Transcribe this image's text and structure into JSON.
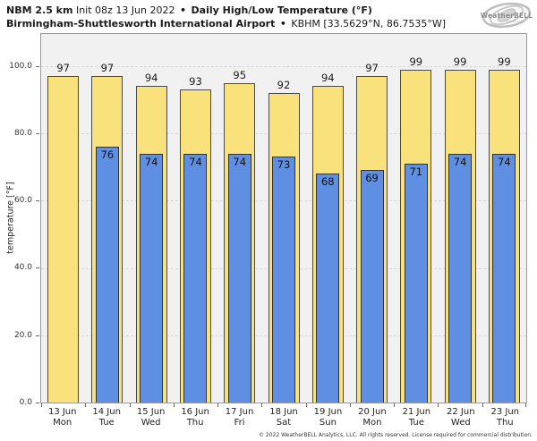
{
  "header": {
    "line1": {
      "model": "NBM 2.5 km",
      "init": "Init 08z 13 Jun 2022",
      "sep": "•",
      "product": "Daily High/Low Temperature (°F)"
    },
    "line2": {
      "station": "Birmingham-Shuttlesworth International Airport",
      "sep": "•",
      "location": "KBHM [33.5629°N, 86.7535°W]"
    }
  },
  "logo": {
    "brand": "WeatherBELL",
    "sub": "Analytics LLC"
  },
  "chart_data": {
    "type": "bar",
    "title": "Daily High/Low Temperature (°F)",
    "xlabel": "",
    "ylabel": "temperature [°F]",
    "ylim": [
      0,
      109.5
    ],
    "yticks": [
      0,
      20,
      40,
      60,
      80,
      100
    ],
    "ytick_labels": [
      "0.0",
      "20.0",
      "40.0",
      "60.0",
      "80.0",
      "100.0"
    ],
    "grid": "horizontal-dashed",
    "legend": "none",
    "categories": [
      {
        "date": "13 Jun",
        "day": "Mon"
      },
      {
        "date": "14 Jun",
        "day": "Tue"
      },
      {
        "date": "15 Jun",
        "day": "Wed"
      },
      {
        "date": "16 Jun",
        "day": "Thu"
      },
      {
        "date": "17 Jun",
        "day": "Fri"
      },
      {
        "date": "18 Jun",
        "day": "Sat"
      },
      {
        "date": "19 Jun",
        "day": "Sun"
      },
      {
        "date": "20 Jun",
        "day": "Mon"
      },
      {
        "date": "21 Jun",
        "day": "Tue"
      },
      {
        "date": "22 Jun",
        "day": "Wed"
      },
      {
        "date": "23 Jun",
        "day": "Thu"
      }
    ],
    "series": [
      {
        "name": "daily-high",
        "color": "#f9e17c",
        "values": [
          97,
          97,
          94,
          93,
          95,
          92,
          94,
          97,
          99,
          99,
          99
        ]
      },
      {
        "name": "daily-low",
        "color": "#5f8fe2",
        "values": [
          null,
          76,
          74,
          74,
          74,
          73,
          68,
          69,
          71,
          74,
          74
        ]
      }
    ]
  },
  "footer": {
    "copyright": "© 2022 WeatherBELL Analytics, LLC. All rights reserved. License required for commercial distribution."
  },
  "colors": {
    "high_fill": "#f9e17c",
    "high_border": "#4a4a4a",
    "low_fill": "#5f8fe2",
    "low_border": "#333333",
    "plot_bg": "#f1f1f1",
    "grid": "#d6d6d6",
    "frame": "#9a9a9a"
  }
}
